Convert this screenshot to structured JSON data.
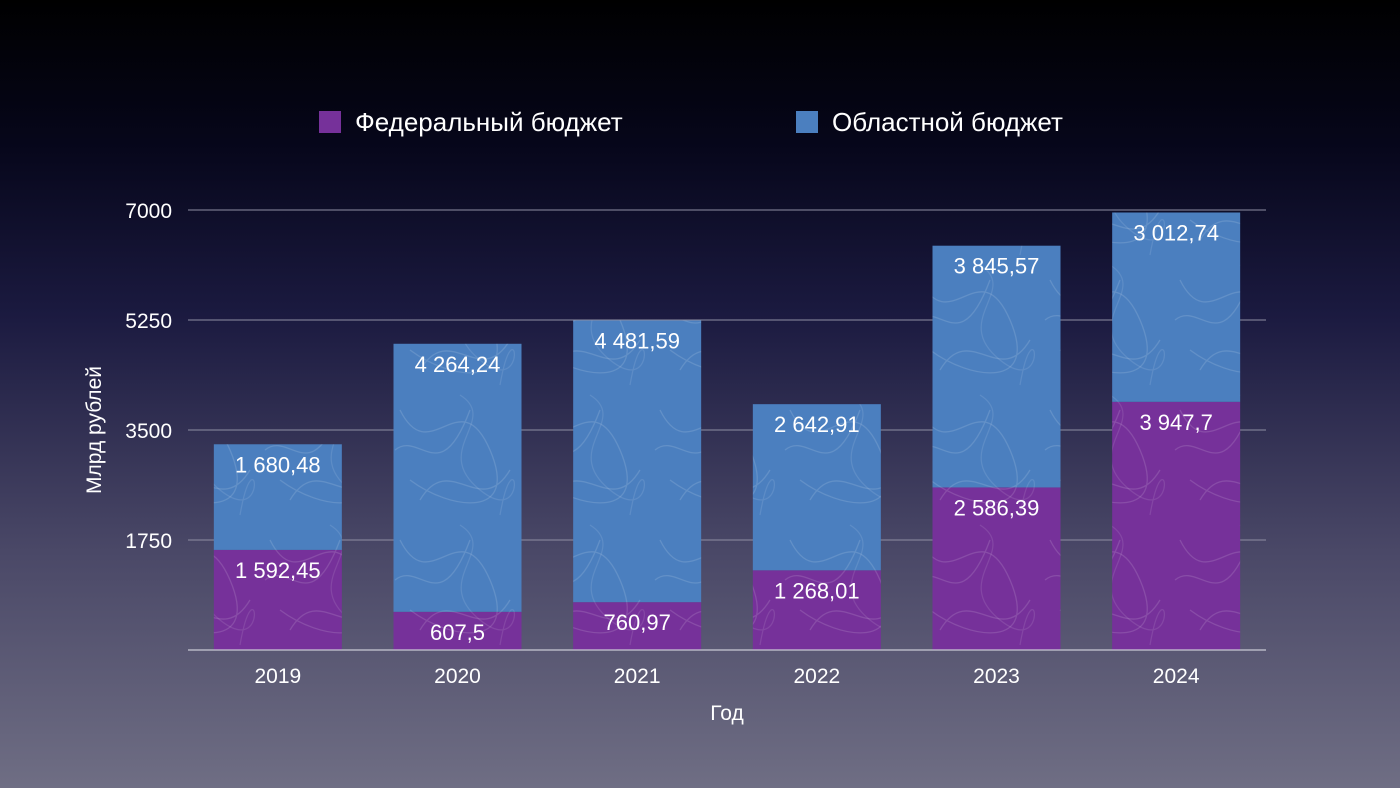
{
  "colors": {
    "federal": "#76319a",
    "regional": "#4b7fbf",
    "text": "#ffffff",
    "gridline": "#8f8fa3"
  },
  "chart_data": {
    "type": "bar",
    "stacked": true,
    "categories": [
      "2019",
      "2020",
      "2021",
      "2022",
      "2023",
      "2024"
    ],
    "series": [
      {
        "name": "Федеральный бюджет",
        "values": [
          1592.45,
          607.5,
          760.97,
          1268.01,
          2586.39,
          3947.7
        ],
        "labels": [
          "1 592,45",
          "607,5",
          "760,97",
          "1 268,01",
          "2 586,39",
          "3 947,7"
        ]
      },
      {
        "name": "Областной бюджет",
        "values": [
          1680.48,
          4264.24,
          4481.59,
          2642.91,
          3845.57,
          3012.74
        ],
        "labels": [
          "1 680,48",
          "4 264,24",
          "4 481,59",
          "2 642,91",
          "3 845,57",
          "3 012,74"
        ]
      }
    ],
    "xlabel": "Год",
    "ylabel": "Млрд рублей",
    "ylim": [
      0,
      7000
    ],
    "yticks": [
      1750,
      3500,
      5250,
      7000
    ],
    "grid": true,
    "legend_position": "top"
  }
}
